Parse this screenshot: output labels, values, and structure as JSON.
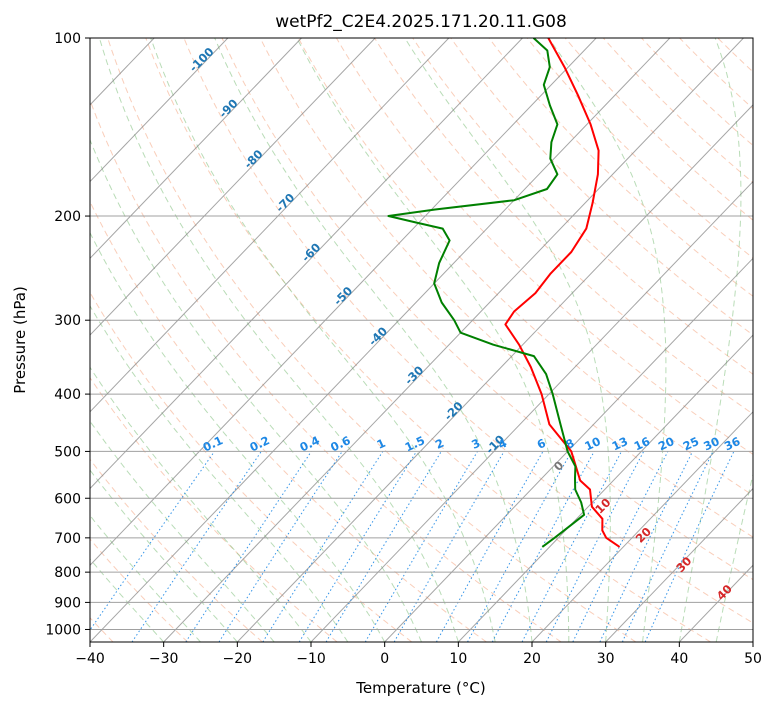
{
  "chart_data": {
    "type": "line",
    "title": "wetPf2_C2E4.2025.171.20.11.G08",
    "xlabel": "Temperature (°C)",
    "ylabel": "Pressure (hPa)",
    "xlim": [
      -40,
      50
    ],
    "ylim": [
      1050,
      100
    ],
    "y_scale": "log",
    "skew": "skew-T log-P",
    "grid": true,
    "xticks": [
      -40,
      -30,
      -20,
      -10,
      0,
      10,
      20,
      30,
      40,
      50
    ],
    "yticks": [
      100,
      200,
      300,
      400,
      500,
      600,
      700,
      800,
      900,
      1000
    ],
    "series": [
      {
        "name": "",
        "role": "temperature",
        "color": "#ff0000",
        "points": [
          {
            "p": 725,
            "t": 19.5
          },
          {
            "p": 700,
            "t": 16.5
          },
          {
            "p": 680,
            "t": 15.0
          },
          {
            "p": 650,
            "t": 13.5
          },
          {
            "p": 620,
            "t": 10.5
          },
          {
            "p": 580,
            "t": 8.0
          },
          {
            "p": 560,
            "t": 5.5
          },
          {
            "p": 500,
            "t": 0.5
          },
          {
            "p": 450,
            "t": -6.0
          },
          {
            "p": 400,
            "t": -11.0
          },
          {
            "p": 360,
            "t": -16.0
          },
          {
            "p": 330,
            "t": -20.5
          },
          {
            "p": 305,
            "t": -25.0
          },
          {
            "p": 290,
            "t": -25.5
          },
          {
            "p": 270,
            "t": -25.0
          },
          {
            "p": 250,
            "t": -25.5
          },
          {
            "p": 230,
            "t": -25.5
          },
          {
            "p": 210,
            "t": -26.5
          },
          {
            "p": 190,
            "t": -29.0
          },
          {
            "p": 170,
            "t": -32.0
          },
          {
            "p": 155,
            "t": -35.0
          },
          {
            "p": 140,
            "t": -39.5
          },
          {
            "p": 125,
            "t": -45.0
          },
          {
            "p": 112,
            "t": -50.5
          },
          {
            "p": 100,
            "t": -56.5
          }
        ]
      },
      {
        "name": "",
        "role": "dewpoint",
        "color": "#008000",
        "points": [
          {
            "p": 725,
            "t": 9.0
          },
          {
            "p": 700,
            "t": 9.5
          },
          {
            "p": 670,
            "t": 10.0
          },
          {
            "p": 640,
            "t": 10.5
          },
          {
            "p": 610,
            "t": 8.5
          },
          {
            "p": 580,
            "t": 6.0
          },
          {
            "p": 555,
            "t": 4.5
          },
          {
            "p": 530,
            "t": 3.0
          },
          {
            "p": 500,
            "t": 0.0
          },
          {
            "p": 450,
            "t": -4.5
          },
          {
            "p": 400,
            "t": -9.5
          },
          {
            "p": 370,
            "t": -13.0
          },
          {
            "p": 345,
            "t": -17.0
          },
          {
            "p": 330,
            "t": -24.0
          },
          {
            "p": 315,
            "t": -30.0
          },
          {
            "p": 300,
            "t": -32.5
          },
          {
            "p": 280,
            "t": -36.5
          },
          {
            "p": 260,
            "t": -40.0
          },
          {
            "p": 240,
            "t": -42.0
          },
          {
            "p": 220,
            "t": -43.5
          },
          {
            "p": 210,
            "t": -46.0
          },
          {
            "p": 205,
            "t": -50.5
          },
          {
            "p": 200,
            "t": -55.0
          },
          {
            "p": 195,
            "t": -49.5
          },
          {
            "p": 188,
            "t": -40.0
          },
          {
            "p": 180,
            "t": -37.0
          },
          {
            "p": 170,
            "t": -37.5
          },
          {
            "p": 160,
            "t": -40.5
          },
          {
            "p": 150,
            "t": -42.5
          },
          {
            "p": 140,
            "t": -44.0
          },
          {
            "p": 130,
            "t": -47.5
          },
          {
            "p": 120,
            "t": -51.0
          },
          {
            "p": 112,
            "t": -52.5
          },
          {
            "p": 105,
            "t": -55.0
          },
          {
            "p": 100,
            "t": -58.5
          }
        ]
      }
    ],
    "annotations": {
      "isotherm_labels": {
        "color": "#1f77b4",
        "items": [
          {
            "text": "-100",
            "p": 110
          },
          {
            "text": "-90",
            "p": 133
          },
          {
            "text": "-80",
            "p": 162
          },
          {
            "text": "-70",
            "p": 192
          },
          {
            "text": "-60",
            "p": 233
          },
          {
            "text": "-50",
            "p": 276
          },
          {
            "text": "-40",
            "p": 323
          },
          {
            "text": "-30",
            "p": 376
          },
          {
            "text": "-20",
            "p": 432
          },
          {
            "text": "-10",
            "p": 492
          }
        ]
      },
      "mixing_ratio_labels": {
        "color": "#1e88e5",
        "p": 500,
        "values": [
          "0.1",
          "0.2",
          "0.4",
          "0.6",
          "1",
          "1.5",
          "2",
          "3",
          "4",
          "6",
          "8",
          "10",
          "13",
          "16",
          "20",
          "25",
          "30",
          "36"
        ]
      },
      "upper_labels": [
        {
          "text": "0",
          "t": 24,
          "p": 535,
          "color": "#777777"
        },
        {
          "text": "10",
          "t": 30,
          "p": 625,
          "color": "#d62728"
        },
        {
          "text": "20",
          "t": 35.5,
          "p": 700,
          "color": "#d62728"
        },
        {
          "text": "30",
          "t": 41,
          "p": 785,
          "color": "#d62728"
        },
        {
          "text": "40",
          "t": 46.5,
          "p": 875,
          "color": "#d62728"
        }
      ]
    }
  }
}
